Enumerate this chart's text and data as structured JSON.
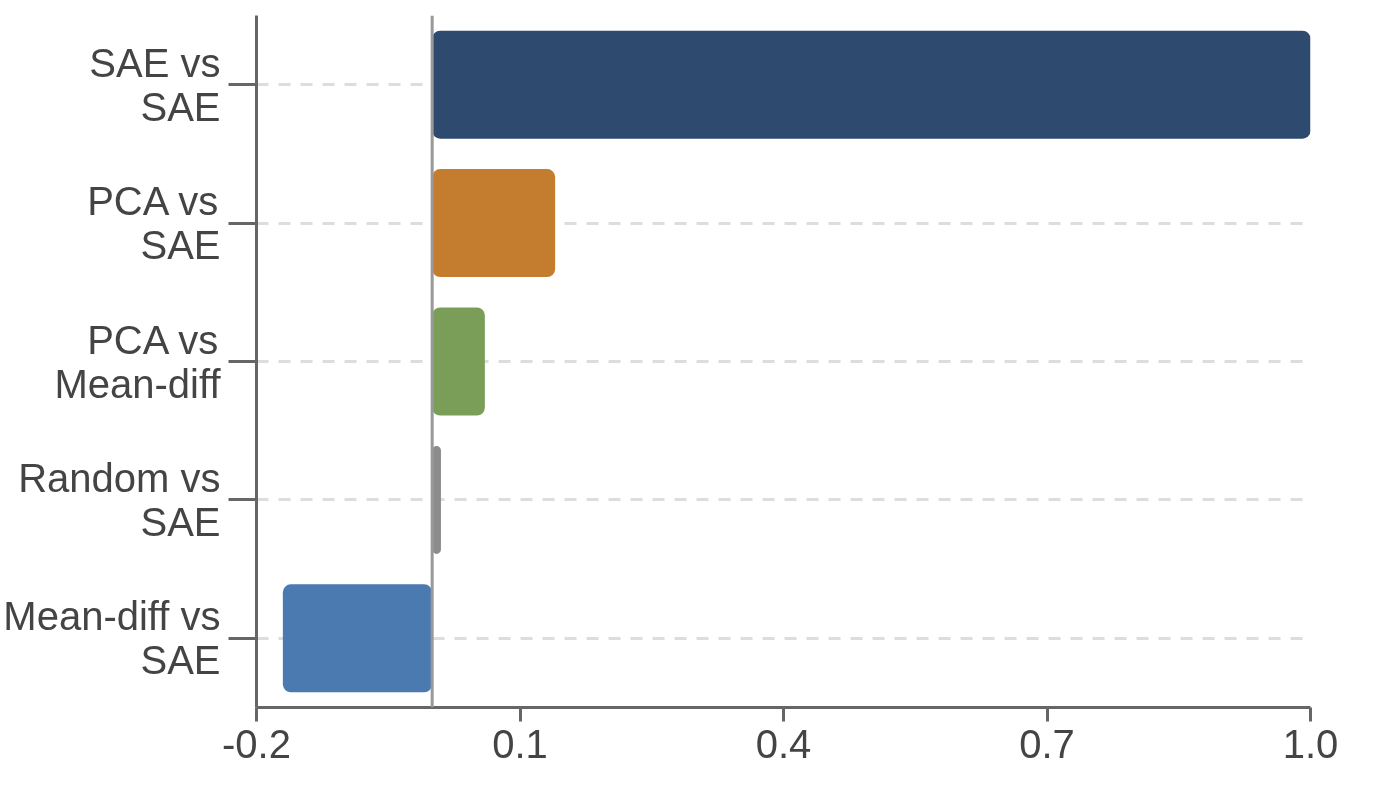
{
  "chart_data": {
    "type": "bar",
    "orientation": "horizontal",
    "categories": [
      "SAE vs SAE",
      "PCA vs SAE",
      "PCA vs Mean-diff",
      "Random vs SAE",
      "Mean-diff vs SAE"
    ],
    "values": [
      1.0,
      0.14,
      0.06,
      0.01,
      -0.17
    ],
    "colors": [
      "#2e4a6e",
      "#c47c2e",
      "#7a9e58",
      "#8c8c8c",
      "#4a7ab0"
    ],
    "xlim": [
      -0.2,
      1.0
    ],
    "xticks": [
      -0.2,
      0.1,
      0.4,
      0.7,
      {
        "value": 1,
        "label": "1.0"
      }
    ],
    "grid": "y",
    "ref_lines": [
      {
        "axis": "x",
        "value": 0,
        "color": "#999999"
      }
    ]
  }
}
